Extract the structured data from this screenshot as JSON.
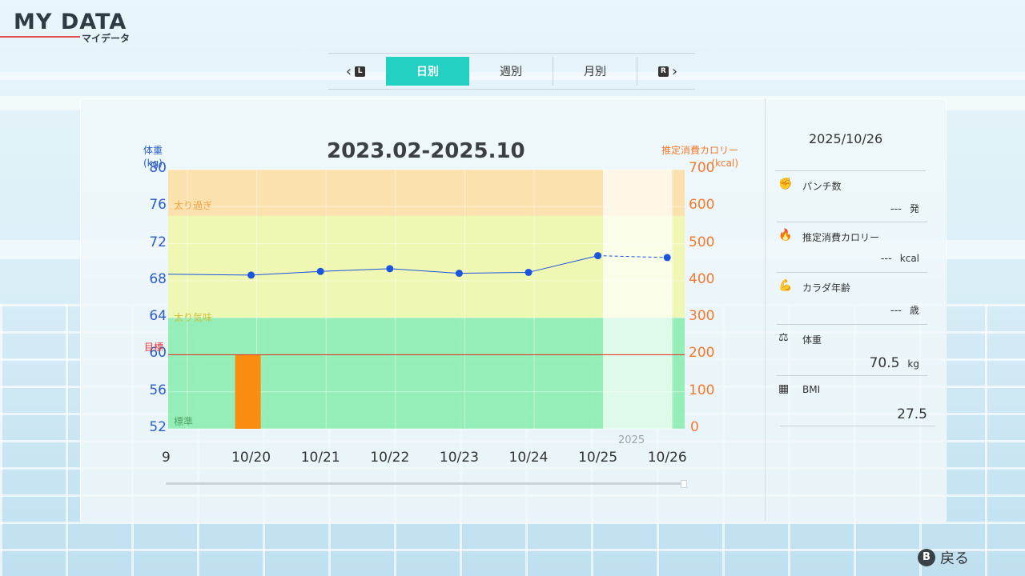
{
  "header": {
    "title": "MY DATA",
    "subtitle": "マイデータ"
  },
  "tabs": {
    "left_key": "L",
    "right_key": "R",
    "items": [
      "日別",
      "週別",
      "月別"
    ],
    "selected": "日別"
  },
  "chart_data": {
    "type": "line",
    "title": "2023.02-2025.10",
    "y_left_label": "体重\n(kg)",
    "y_right_label": "推定消費カロリー\n(kcal)",
    "y_left_ticks": [
      80,
      76,
      72,
      68,
      64,
      60,
      56,
      52
    ],
    "y_right_ticks": [
      700,
      600,
      500,
      400,
      300,
      200,
      100,
      0
    ],
    "ylim_left": [
      52,
      80
    ],
    "ylim_right": [
      0,
      700
    ],
    "target_label": "目標",
    "target_value": 60,
    "zones": [
      {
        "label": "太り過ぎ",
        "from": 75,
        "to": 80,
        "color": "#fddda0"
      },
      {
        "label": "太り気味",
        "from": 64,
        "to": 75,
        "color": "#eef7a6"
      },
      {
        "label": "標準",
        "from": 52,
        "to": 64,
        "color": "#86ecab"
      }
    ],
    "x_ticks": [
      "9",
      "10/20",
      "10/21",
      "10/22",
      "10/23",
      "10/24",
      "10/25",
      "10/26"
    ],
    "year_label": "2025",
    "series": [
      {
        "axis": "left",
        "x": [
          "10/20",
          "10/21",
          "10/22",
          "10/23",
          "10/24",
          "10/25",
          "10/26"
        ],
        "values": [
          68.6,
          69.0,
          69.3,
          68.8,
          68.9,
          70.7,
          70.5
        ],
        "color": "#1a55e0"
      },
      {
        "axis": "right",
        "type": "bar",
        "x": [
          "10/20"
        ],
        "values": [
          200
        ],
        "color": "#fb8c12"
      }
    ],
    "grid": true
  },
  "info": {
    "date": "2025/10/26",
    "items": [
      {
        "icon": "punch-icon",
        "label": "パンチ数",
        "value": "---",
        "unit": "発"
      },
      {
        "icon": "flame-icon",
        "label": "推定消費カロリー",
        "value": "---",
        "unit": "kcal"
      },
      {
        "icon": "muscle-icon",
        "label": "カラダ年齢",
        "value": "---",
        "unit": "歳"
      },
      {
        "icon": "scale-icon",
        "label": "体重",
        "value": "70.5",
        "unit": "kg"
      },
      {
        "icon": "calculator-icon",
        "label": "BMI",
        "value": "27.5",
        "unit": ""
      }
    ]
  },
  "footer": {
    "back_key": "B",
    "back_label": "戻る"
  }
}
